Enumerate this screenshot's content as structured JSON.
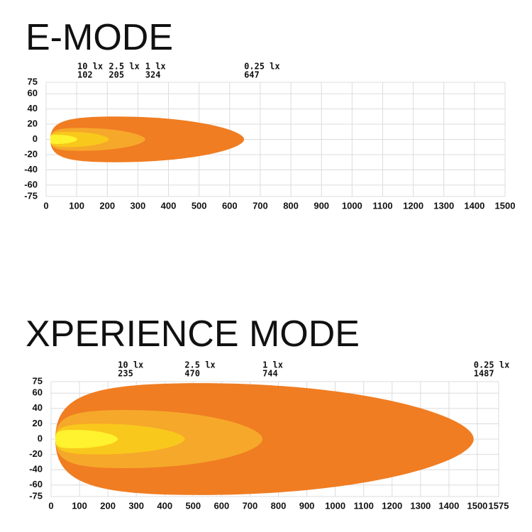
{
  "chart_data": [
    {
      "type": "isolux",
      "title": "E-MODE",
      "series": [
        {
          "name": "10 lx",
          "value": 102,
          "half_width": 6,
          "color": "#fff22e"
        },
        {
          "name": "2.5 lx",
          "value": 205,
          "half_width": 10,
          "color": "#f9c81c"
        },
        {
          "name": "1 lx",
          "value": 324,
          "half_width": 15,
          "color": "#f6a82a"
        },
        {
          "name": "0.25 lx",
          "value": 647,
          "half_width": 30,
          "color": "#f07d22"
        }
      ],
      "xlim": [
        0,
        1500
      ],
      "xticks": [
        0,
        100,
        200,
        300,
        400,
        500,
        600,
        700,
        800,
        900,
        1000,
        1100,
        1200,
        1300,
        1400,
        1500
      ],
      "ylim": [
        -75,
        75
      ],
      "yticks": [
        75,
        60,
        40,
        20,
        0,
        -20,
        -40,
        -60,
        -75
      ],
      "grid": true
    },
    {
      "type": "isolux",
      "title": "XPERIENCE MODE",
      "series": [
        {
          "name": "10 lx",
          "value": 235,
          "half_width": 12,
          "color": "#fff22e"
        },
        {
          "name": "2.5 lx",
          "value": 470,
          "half_width": 20,
          "color": "#f9c81c"
        },
        {
          "name": "1 lx",
          "value": 744,
          "half_width": 38,
          "color": "#f6a82a"
        },
        {
          "name": "0.25 lx",
          "value": 1487,
          "half_width": 73,
          "color": "#f07d22"
        }
      ],
      "xlim": [
        0,
        1575
      ],
      "xticks": [
        0,
        100,
        200,
        300,
        400,
        500,
        600,
        700,
        800,
        900,
        1000,
        1100,
        1200,
        1300,
        1400,
        1500,
        1575
      ],
      "ylim": [
        -75,
        75
      ],
      "yticks": [
        75,
        60,
        40,
        20,
        0,
        -20,
        -40,
        -60,
        -75
      ],
      "grid": true
    }
  ]
}
